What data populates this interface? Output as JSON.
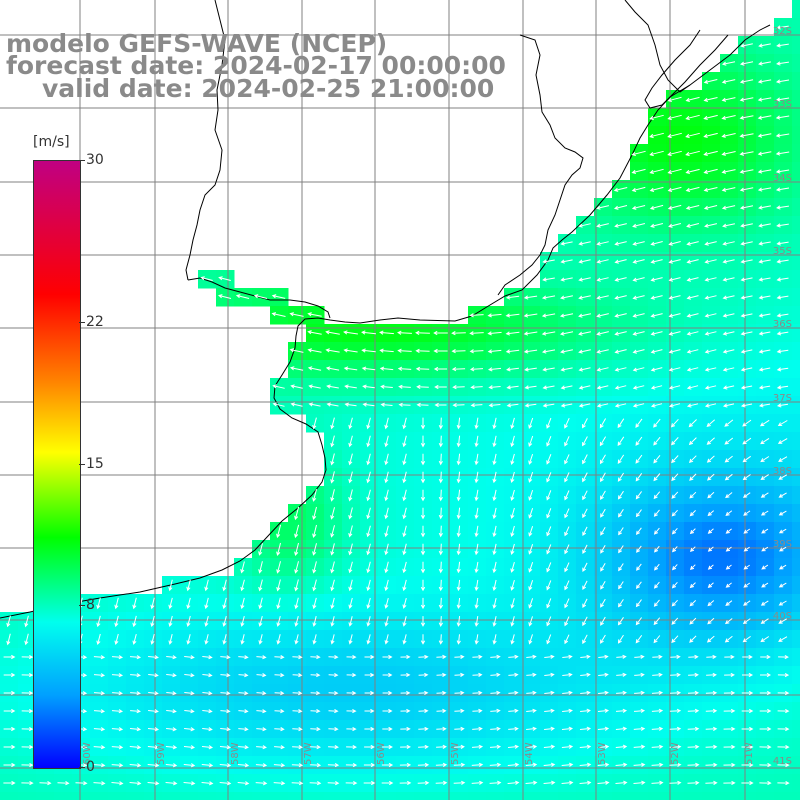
{
  "title": {
    "line1": "modelo GEFS-WAVE (NCEP)",
    "line2": "forecast date: 2024-02-17 00:00:00",
    "line3": "valid date: 2024-02-25 21:00:00"
  },
  "colorbar": {
    "units": "[m/s]",
    "range": [
      0,
      30
    ],
    "ticks": [
      {
        "label": "30",
        "value": 30
      },
      {
        "label": "22",
        "value": 22
      },
      {
        "label": "15",
        "value": 15
      },
      {
        "label": "8",
        "value": 8
      },
      {
        "label": "0",
        "value": 0
      }
    ],
    "colors": [
      "#c00082",
      "#ff0000",
      "#ff8000",
      "#ffff00",
      "#00ff00",
      "#00ffee",
      "#00a0ff",
      "#0000ff"
    ]
  },
  "map": {
    "latitude_labels": [
      "32S",
      "33S",
      "34S",
      "35S",
      "36S",
      "37S",
      "38S",
      "39S",
      "40S",
      "41S"
    ],
    "longitude_labels": [
      "60W",
      "59W",
      "58W",
      "57W",
      "56W",
      "55W",
      "54W",
      "53W",
      "52W",
      "51W"
    ],
    "land_color": "#ffffff",
    "grid_color": "#808080",
    "coast_color": "#000000",
    "arrow_color": "#ffffff"
  }
}
